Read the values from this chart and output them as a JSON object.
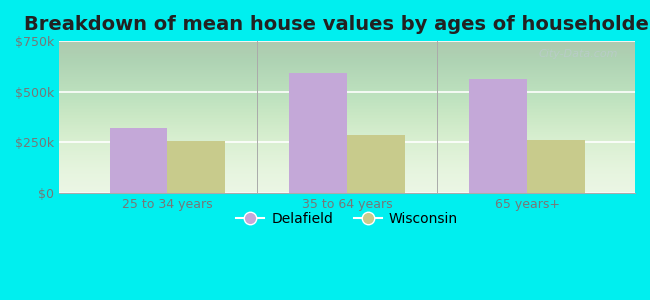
{
  "title": "Breakdown of mean house values by ages of householders",
  "categories": [
    "25 to 34 years",
    "35 to 64 years",
    "65 years+"
  ],
  "delafield_values": [
    320000,
    590000,
    560000
  ],
  "wisconsin_values": [
    255000,
    285000,
    260000
  ],
  "delafield_color": "#c4a8d8",
  "wisconsin_color": "#c8cb8c",
  "ylim": [
    0,
    750000
  ],
  "yticks": [
    0,
    250000,
    500000,
    750000
  ],
  "ytick_labels": [
    "$0",
    "$250k",
    "$500k",
    "$750k"
  ],
  "bar_width": 0.32,
  "outer_bg": "#00EFEF",
  "plot_bg_top": "#f0faf0",
  "plot_bg_bottom": "#d8f0d8",
  "legend_labels": [
    "Delafield",
    "Wisconsin"
  ],
  "title_fontsize": 14,
  "tick_fontsize": 9,
  "watermark_text": "City-Data.com",
  "title_color": "#222222",
  "tick_color": "#777777"
}
